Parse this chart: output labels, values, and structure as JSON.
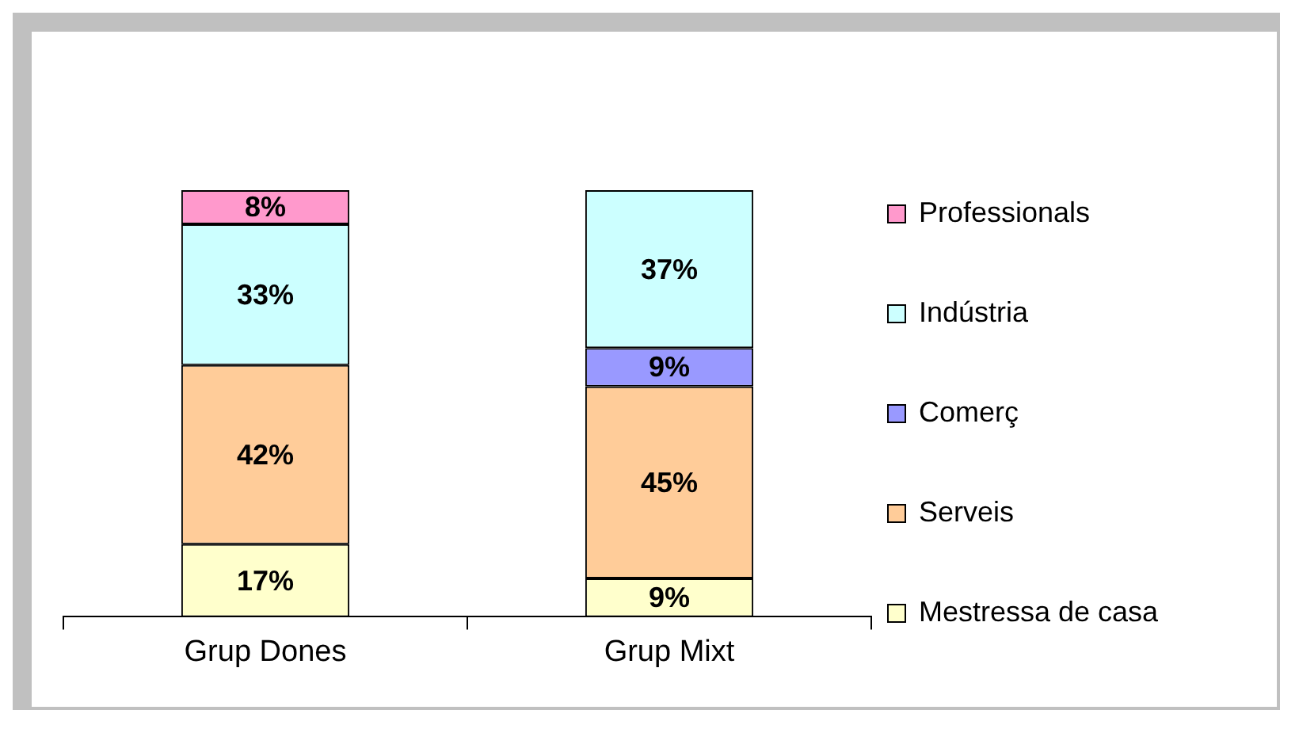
{
  "chart_data": {
    "type": "bar",
    "stacked": true,
    "categories": [
      "Grup Dones",
      "Grup Mixt"
    ],
    "series": [
      {
        "name": "Mestressa de casa",
        "color": "#ffffcc",
        "values": [
          17,
          9
        ],
        "value_labels": [
          "17%",
          "9%"
        ]
      },
      {
        "name": "Serveis",
        "color": "#ffcc99",
        "values": [
          42,
          45
        ],
        "value_labels": [
          "42%",
          "45%"
        ]
      },
      {
        "name": "Comerç",
        "color": "#9999ff",
        "values": [
          null,
          9
        ],
        "value_labels": [
          null,
          "9%"
        ]
      },
      {
        "name": "Indústria",
        "color": "#ccffff",
        "values": [
          33,
          37
        ],
        "value_labels": [
          "33%",
          "37%"
        ]
      },
      {
        "name": "Professionals",
        "color": "#ff99cc",
        "values": [
          8,
          null
        ],
        "value_labels": [
          "8%",
          null
        ]
      }
    ],
    "legend": "right",
    "grid": false
  }
}
